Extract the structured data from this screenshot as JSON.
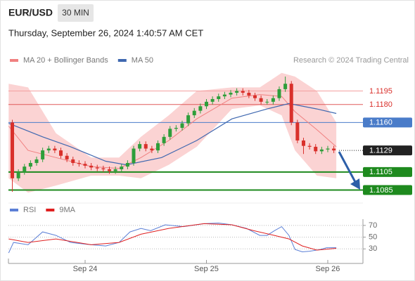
{
  "header": {
    "symbol": "EUR/USD",
    "interval": "30 MIN",
    "timestamp": "Thursday, September 26, 2024 1:40:57 AM CET",
    "credit": "Research © 2024 Trading Central"
  },
  "chart_data": [
    {
      "type": "candlestick",
      "x": [
        0.4,
        0.45,
        0.5,
        0.55,
        0.6,
        0.65,
        0.7,
        0.75,
        0.8,
        0.85,
        0.9,
        0.95,
        1.0,
        1.05,
        1.1,
        1.15,
        1.2,
        1.25,
        1.3,
        1.35,
        1.4,
        1.45,
        1.5,
        1.55,
        1.6,
        1.65,
        1.7,
        1.75,
        1.8,
        1.85,
        1.9,
        1.95,
        2.0,
        2.05,
        2.1,
        2.15,
        2.2,
        2.25,
        2.3,
        2.35,
        2.4,
        2.45,
        2.5,
        2.55,
        2.6,
        2.65,
        2.7,
        2.75,
        2.8,
        2.85,
        2.9,
        2.95,
        3.0,
        3.05
      ],
      "open": [
        1.116,
        1.1098,
        1.1105,
        1.1111,
        1.1115,
        1.1119,
        1.1129,
        1.1131,
        1.1129,
        1.1123,
        1.1119,
        1.1115,
        1.1114,
        1.1112,
        1.111,
        1.1109,
        1.1108,
        1.1106,
        1.1108,
        1.1111,
        1.1115,
        1.1131,
        1.1136,
        1.1131,
        1.1129,
        1.1137,
        1.1144,
        1.1153,
        1.1154,
        1.1159,
        1.1168,
        1.1173,
        1.1178,
        1.1183,
        1.1186,
        1.1189,
        1.1191,
        1.1193,
        1.1195,
        1.1193,
        1.119,
        1.1187,
        1.1183,
        1.1183,
        1.1187,
        1.1197,
        1.1203,
        1.116,
        1.114,
        1.1134,
        1.1133,
        1.1128,
        1.113,
        1.1131
      ],
      "high": [
        1.1163,
        1.1108,
        1.1114,
        1.1118,
        1.1122,
        1.1132,
        1.1134,
        1.1134,
        1.1132,
        1.1126,
        1.1122,
        1.1118,
        1.1117,
        1.1115,
        1.1113,
        1.1112,
        1.1111,
        1.1111,
        1.1114,
        1.1118,
        1.1134,
        1.1139,
        1.1139,
        1.1134,
        1.114,
        1.1147,
        1.1156,
        1.1157,
        1.1162,
        1.1171,
        1.1176,
        1.1181,
        1.1186,
        1.1189,
        1.1192,
        1.1194,
        1.1196,
        1.1198,
        1.1198,
        1.1196,
        1.1193,
        1.119,
        1.1186,
        1.119,
        1.12,
        1.1211,
        1.1206,
        1.1163,
        1.1143,
        1.1137,
        1.1136,
        1.1133,
        1.1134,
        1.1134
      ],
      "low": [
        1.1083,
        1.1095,
        1.1102,
        1.1108,
        1.1112,
        1.1116,
        1.1126,
        1.1126,
        1.112,
        1.1116,
        1.1112,
        1.1111,
        1.1109,
        1.1107,
        1.1106,
        1.1105,
        1.1103,
        1.1103,
        1.1105,
        1.1108,
        1.1112,
        1.1128,
        1.1128,
        1.1126,
        1.1126,
        1.1134,
        1.1141,
        1.115,
        1.1151,
        1.1156,
        1.1165,
        1.117,
        1.1175,
        1.118,
        1.1183,
        1.1186,
        1.1188,
        1.119,
        1.119,
        1.1187,
        1.1184,
        1.118,
        1.118,
        1.118,
        1.1184,
        1.1194,
        1.1157,
        1.1137,
        1.1125,
        1.113,
        1.1125,
        1.1125,
        1.1127,
        1.1126
      ],
      "close": [
        1.1098,
        1.1105,
        1.1111,
        1.1115,
        1.1119,
        1.1129,
        1.1131,
        1.1129,
        1.1123,
        1.1119,
        1.1115,
        1.1114,
        1.1112,
        1.111,
        1.1109,
        1.1108,
        1.1106,
        1.1108,
        1.1111,
        1.1115,
        1.1131,
        1.1136,
        1.1131,
        1.1129,
        1.1137,
        1.1144,
        1.1153,
        1.1154,
        1.1159,
        1.1168,
        1.1173,
        1.1178,
        1.1183,
        1.1186,
        1.1189,
        1.1191,
        1.1193,
        1.1195,
        1.1193,
        1.119,
        1.1187,
        1.1183,
        1.1183,
        1.1187,
        1.1197,
        1.1203,
        1.116,
        1.114,
        1.1134,
        1.1133,
        1.1128,
        1.113,
        1.1131,
        1.1129
      ],
      "up_color": "#2e9e3a",
      "down_color": "#d9302b",
      "xlim": [
        0.368,
        3.29
      ],
      "ylim": [
        1.1076,
        1.1218
      ],
      "series": [
        {
          "name": "MA 20 + Bollinger Bands",
          "color": "#f08080",
          "band_color": "#fbd3d3",
          "x": [
            0.37,
            0.53,
            0.76,
            1.05,
            1.28,
            1.46,
            1.69,
            1.92,
            2.21,
            2.44,
            2.62,
            2.73,
            2.91,
            3.07
          ],
          "values": [
            1.1156,
            1.1129,
            1.1121,
            1.1111,
            1.1109,
            1.1121,
            1.114,
            1.1164,
            1.1187,
            1.1191,
            1.1189,
            1.1172,
            1.1152,
            1.1133
          ],
          "upper": [
            1.1203,
            1.1199,
            1.1148,
            1.1121,
            1.1121,
            1.1144,
            1.1168,
            1.1195,
            1.1199,
            1.1199,
            1.1215,
            1.1211,
            1.1195,
            1.116
          ],
          "lower": [
            1.1098,
            1.1082,
            1.109,
            1.1101,
            1.1101,
            1.1098,
            1.1113,
            1.1133,
            1.1175,
            1.1179,
            1.1168,
            1.1129,
            1.1101,
            1.1098
          ]
        },
        {
          "name": "MA 50",
          "color": "#3f68b0",
          "x": [
            0.37,
            0.65,
            0.88,
            1.17,
            1.34,
            1.63,
            1.92,
            2.21,
            2.5,
            2.68,
            2.91,
            3.07
          ],
          "values": [
            1.1159,
            1.1144,
            1.1133,
            1.1117,
            1.1113,
            1.1121,
            1.114,
            1.1164,
            1.1175,
            1.1181,
            1.1175,
            1.117
          ]
        }
      ],
      "levels": [
        {
          "value": 1.1195,
          "color": "#f4a0a0",
          "text_color": "#d9302b",
          "label_style": "text",
          "line": "solid"
        },
        {
          "value": 1.118,
          "label": "1.1180",
          "color": "#e05a5a",
          "text_color": "#d9302b",
          "label_style": "text",
          "line": "solid"
        },
        {
          "value": 1.116,
          "label": "1.1160",
          "color": "#4a7cc9",
          "text_color": "#ffffff",
          "label_style": "box",
          "line": "solid"
        },
        {
          "value": 1.1129,
          "color": "#222222",
          "text_color": "#ffffff",
          "label_style": "box",
          "line": "dotted"
        },
        {
          "value": 1.1105,
          "color": "#1e8a1e",
          "text_color": "#ffffff",
          "label_style": "box",
          "line": "thick"
        },
        {
          "value": 1.1085,
          "color": "#1e8a1e",
          "text_color": "#ffffff",
          "label_style": "box",
          "line": "thick"
        }
      ]
    },
    {
      "type": "line",
      "xlim": [
        0.368,
        3.29
      ],
      "ylim": [
        10,
        95
      ],
      "yticks": [
        30,
        50,
        70
      ],
      "xticks": [
        {
          "value": 1,
          "label": "Sep 24"
        },
        {
          "value": 2,
          "label": "Sep 25"
        },
        {
          "value": 3,
          "label": "Sep 26"
        }
      ],
      "series": [
        {
          "name": "RSI",
          "color": "#5b7fd6",
          "x": [
            0.37,
            0.41,
            0.53,
            0.65,
            0.76,
            0.88,
            1.05,
            1.17,
            1.28,
            1.37,
            1.46,
            1.54,
            1.66,
            1.81,
            1.98,
            2.1,
            2.21,
            2.33,
            2.44,
            2.5,
            2.56,
            2.62,
            2.68,
            2.73,
            2.79,
            2.85,
            2.94,
            2.99,
            3.07
          ],
          "values": [
            23,
            41,
            37,
            59,
            53,
            41,
            37,
            35,
            41,
            59,
            65,
            61,
            71,
            68,
            73,
            74,
            71,
            65,
            53,
            53,
            61,
            68,
            53,
            29,
            25,
            26,
            29,
            32,
            32
          ]
        },
        {
          "name": "9MA",
          "color": "#e02020",
          "x": [
            0.37,
            0.53,
            0.76,
            1.05,
            1.28,
            1.46,
            1.69,
            1.98,
            2.21,
            2.39,
            2.56,
            2.68,
            2.79,
            2.91,
            3.07
          ],
          "values": [
            47,
            41,
            47,
            37,
            41,
            55,
            65,
            73,
            71,
            61,
            53,
            47,
            35,
            28,
            31
          ]
        }
      ]
    }
  ]
}
